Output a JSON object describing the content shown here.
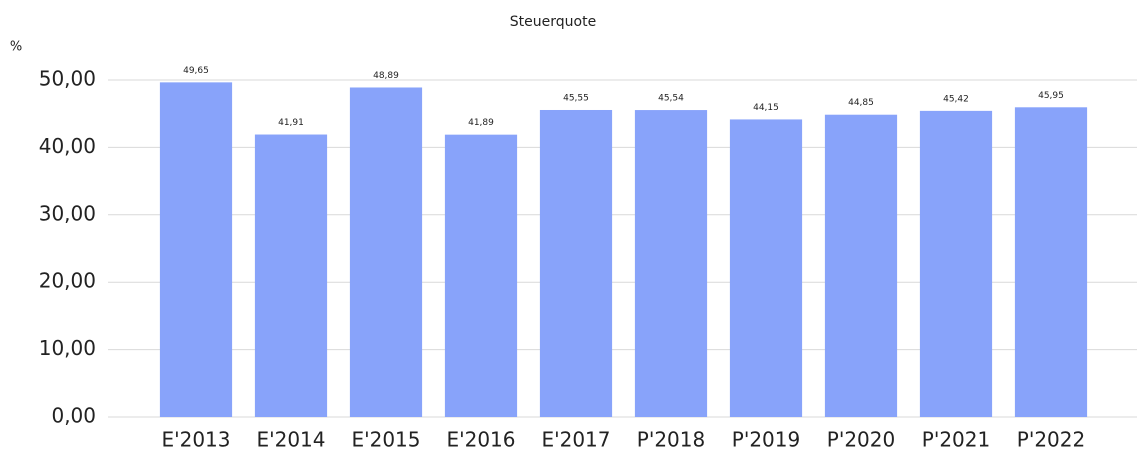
{
  "chart_data": {
    "type": "bar",
    "title": "Steuerquote",
    "ylabel": "%",
    "categories": [
      "E'2013",
      "E'2014",
      "E'2015",
      "E'2016",
      "E'2017",
      "P'2018",
      "P'2019",
      "P'2020",
      "P'2021",
      "P'2022"
    ],
    "values": [
      49.65,
      41.91,
      48.89,
      41.89,
      45.55,
      45.54,
      44.15,
      44.85,
      45.42,
      45.95
    ],
    "value_labels": [
      "49,65",
      "41,91",
      "48,89",
      "41,89",
      "45,55",
      "45,54",
      "44,15",
      "44,85",
      "45,42",
      "45,95"
    ],
    "color": "#88a3fa",
    "ylim": [
      0,
      50
    ],
    "yticks": [
      {
        "value": 0,
        "label": "0,00"
      },
      {
        "value": 10,
        "label": "10,00"
      },
      {
        "value": 20,
        "label": "20,00"
      },
      {
        "value": 30,
        "label": "30,00"
      },
      {
        "value": 40,
        "label": "40,00"
      },
      {
        "value": 50,
        "label": "50,00"
      }
    ],
    "grid": true
  }
}
